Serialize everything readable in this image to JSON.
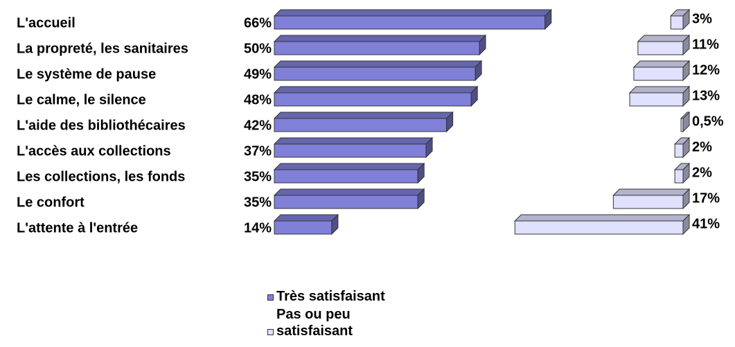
{
  "chart_data": {
    "type": "bar3d-diverging",
    "categories": [
      "L'accueil",
      "La propreté, les sanitaires",
      "Le système de pause",
      "Le calme, le silence",
      "L'aide des bibliothécaires",
      "L'accès aux collections",
      "Les collections, les fonds",
      "Le confort",
      "L'attente à l'entrée"
    ],
    "series": [
      {
        "name": "Très satisfaisant",
        "color": "#8080d8",
        "values": [
          66,
          50,
          49,
          48,
          42,
          37,
          35,
          35,
          14
        ],
        "value_labels": [
          "66%",
          "50%",
          "49%",
          "48%",
          "42%",
          "37%",
          "35%",
          "35%",
          "14%"
        ]
      },
      {
        "name": "Pas ou peu satisfaisant",
        "color": "#e0e0ff",
        "values": [
          3,
          11,
          12,
          13,
          0.5,
          2,
          2,
          17,
          41
        ],
        "value_labels": [
          "3%",
          "11%",
          "12%",
          "13%",
          "0,5%",
          "2%",
          "2%",
          "17%",
          "41%"
        ]
      }
    ]
  }
}
